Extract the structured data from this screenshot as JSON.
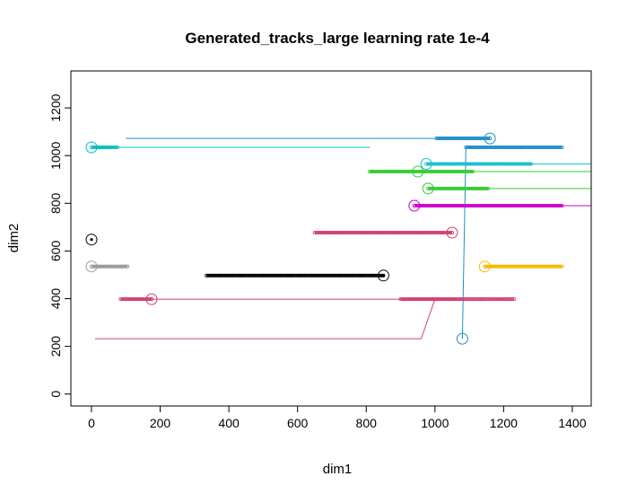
{
  "chart_data": {
    "type": "scatter",
    "title": "Generated_tracks_large learning rate 1e-4",
    "xlabel": "dim1",
    "ylabel": "dim2",
    "xlim": [
      -60,
      1455
    ],
    "ylim": [
      -50,
      1355
    ],
    "x_ticks": [
      0,
      200,
      400,
      600,
      800,
      1000,
      1200,
      1400
    ],
    "y_ticks": [
      0,
      200,
      400,
      600,
      800,
      1000,
      1200
    ],
    "grid": false,
    "legend": "none",
    "series": [
      {
        "color": "#00BFC4",
        "marker_x": 0,
        "marker_y": 1035,
        "path": [
          [
            810,
            1035
          ],
          [
            75,
            1035
          ],
          [
            0,
            1035
          ]
        ],
        "point_ranges": [
          [
            0,
            75
          ]
        ]
      },
      {
        "color": "#1E90C8",
        "marker_x": 1160,
        "marker_y": 1072,
        "path": [
          [
            100,
            1072
          ],
          [
            1160,
            1072
          ]
        ],
        "point_ranges": [
          [
            1005,
            1160
          ]
        ]
      },
      {
        "color": "#1E90C8",
        "marker_x": 1080,
        "marker_y": 232,
        "path": [
          [
            1080,
            232
          ],
          [
            1090,
            1035
          ],
          [
            1370,
            1035
          ]
        ],
        "point_ranges": [
          [
            1090,
            1370
          ]
        ]
      },
      {
        "color": "#17BECF",
        "marker_x": 975,
        "marker_y": 965,
        "path": [
          [
            975,
            965
          ],
          [
            1455,
            965
          ]
        ],
        "point_ranges": [
          [
            975,
            1280
          ]
        ]
      },
      {
        "color": "#32CD32",
        "marker_x": 950,
        "marker_y": 933,
        "path": [
          [
            810,
            933
          ],
          [
            1455,
            933
          ]
        ],
        "point_ranges": [
          [
            810,
            1110
          ]
        ]
      },
      {
        "color": "#32CD32",
        "marker_x": 980,
        "marker_y": 862,
        "path": [
          [
            980,
            862
          ],
          [
            1455,
            862
          ]
        ],
        "point_ranges": [
          [
            980,
            1155
          ]
        ]
      },
      {
        "color": "#CC00CC",
        "marker_x": 940,
        "marker_y": 790,
        "path": [
          [
            940,
            790
          ],
          [
            1455,
            790
          ]
        ],
        "point_ranges": [
          [
            940,
            1370
          ]
        ]
      },
      {
        "color": "#D2416E",
        "marker_x": 1050,
        "marker_y": 677,
        "path": [
          [
            650,
            677
          ],
          [
            1050,
            677
          ]
        ],
        "point_ranges": [
          [
            650,
            1050
          ]
        ]
      },
      {
        "color": "#000000",
        "marker_x": 0,
        "marker_y": 648,
        "path": [],
        "point_ranges": []
      },
      {
        "color": "#999999",
        "marker_x": 0,
        "marker_y": 535,
        "path": [
          [
            0,
            535
          ],
          [
            105,
            535
          ]
        ],
        "point_ranges": [
          [
            0,
            105
          ]
        ]
      },
      {
        "color": "#000000",
        "marker_x": 850,
        "marker_y": 497,
        "path": [
          [
            335,
            497
          ],
          [
            850,
            497
          ]
        ],
        "point_ranges": [
          [
            335,
            850
          ]
        ]
      },
      {
        "color": "#F5B800",
        "marker_x": 1145,
        "marker_y": 535,
        "path": [
          [
            1145,
            535
          ],
          [
            1370,
            535
          ]
        ],
        "point_ranges": [
          [
            1145,
            1370
          ]
        ]
      },
      {
        "color": "#D2416E",
        "marker_x": 175,
        "marker_y": 398,
        "path": [
          [
            85,
            398
          ],
          [
            1065,
            398
          ]
        ],
        "point_ranges": [
          [
            85,
            175
          ]
        ]
      },
      {
        "color": "#D2416E",
        "marker_x": null,
        "marker_y": null,
        "path": [
          [
            10,
            232
          ],
          [
            960,
            232
          ],
          [
            1000,
            398
          ],
          [
            1030,
            398
          ]
        ],
        "point_ranges": [
          [
            900,
            1230
          ]
        ]
      }
    ]
  }
}
